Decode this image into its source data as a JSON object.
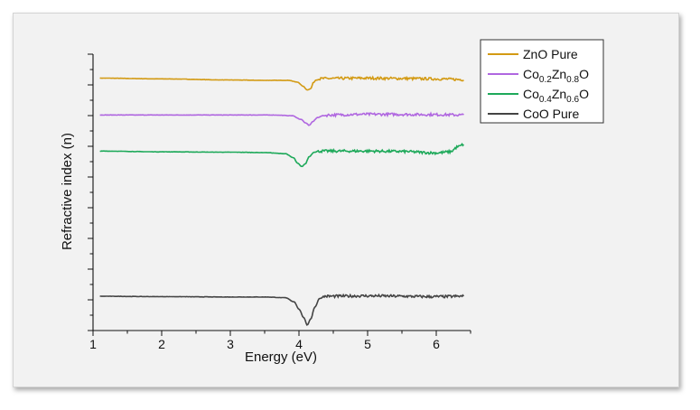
{
  "chart_data": {
    "type": "line",
    "xlabel": "Energy (eV)",
    "ylabel": "Refractive index (n)",
    "xlim": [
      1,
      6.5
    ],
    "x_ticks": [
      1,
      2,
      3,
      4,
      5,
      6
    ],
    "y_tick_labels_shown": false,
    "grid": false,
    "legend_position": "top-right",
    "series": [
      {
        "name": "ZnO Pure",
        "color": "#d39a13",
        "offset": 2.35,
        "points": [
          [
            1.1,
            0.0
          ],
          [
            2.0,
            -0.02
          ],
          [
            3.0,
            -0.05
          ],
          [
            3.5,
            -0.06
          ],
          [
            3.85,
            -0.06
          ],
          [
            3.98,
            -0.11
          ],
          [
            4.06,
            -0.22
          ],
          [
            4.12,
            -0.32
          ],
          [
            4.17,
            -0.29
          ],
          [
            4.21,
            -0.12
          ],
          [
            4.25,
            -0.05
          ],
          [
            4.35,
            -0.01
          ],
          [
            5.0,
            0.0
          ],
          [
            5.5,
            -0.01
          ],
          [
            6.0,
            -0.02
          ],
          [
            6.4,
            -0.04
          ]
        ],
        "noise_from": 4.3
      },
      {
        "name": "Co0.2Zn0.8O",
        "color": "#b067e0",
        "offset": 1.35,
        "points": [
          [
            1.1,
            0.0
          ],
          [
            2.5,
            0.0
          ],
          [
            3.6,
            0.0
          ],
          [
            3.9,
            -0.02
          ],
          [
            4.03,
            -0.12
          ],
          [
            4.1,
            -0.22
          ],
          [
            4.15,
            -0.28
          ],
          [
            4.2,
            -0.18
          ],
          [
            4.27,
            -0.07
          ],
          [
            4.35,
            -0.02
          ],
          [
            4.45,
            0.0
          ],
          [
            5.0,
            0.02
          ],
          [
            6.0,
            0.01
          ],
          [
            6.4,
            0.0
          ]
        ],
        "noise_from": 4.4
      },
      {
        "name": "Co0.4Zn0.6O",
        "color": "#1ea95a",
        "offset": 0.37,
        "points": [
          [
            1.1,
            0.0
          ],
          [
            2.0,
            -0.02
          ],
          [
            3.0,
            -0.03
          ],
          [
            3.5,
            -0.04
          ],
          [
            3.8,
            -0.07
          ],
          [
            3.92,
            -0.18
          ],
          [
            3.98,
            -0.33
          ],
          [
            4.04,
            -0.42
          ],
          [
            4.09,
            -0.35
          ],
          [
            4.15,
            -0.15
          ],
          [
            4.22,
            -0.03
          ],
          [
            4.32,
            0.0
          ],
          [
            5.0,
            0.0
          ],
          [
            5.5,
            -0.01
          ],
          [
            6.0,
            -0.05
          ],
          [
            6.2,
            -0.02
          ],
          [
            6.32,
            0.12
          ],
          [
            6.4,
            0.18
          ]
        ],
        "noise_from": 4.25
      },
      {
        "name": "CoO Pure",
        "color": "#444444",
        "offset": -3.57,
        "points": [
          [
            1.1,
            0.0
          ],
          [
            2.0,
            -0.01
          ],
          [
            3.0,
            -0.02
          ],
          [
            3.5,
            -0.02
          ],
          [
            3.8,
            -0.04
          ],
          [
            3.93,
            -0.15
          ],
          [
            4.0,
            -0.35
          ],
          [
            4.07,
            -0.58
          ],
          [
            4.12,
            -0.78
          ],
          [
            4.17,
            -0.62
          ],
          [
            4.23,
            -0.3
          ],
          [
            4.3,
            -0.06
          ],
          [
            4.38,
            0.0
          ],
          [
            5.0,
            0.01
          ],
          [
            6.0,
            -0.01
          ],
          [
            6.4,
            0.0
          ]
        ],
        "noise_from": 4.35
      }
    ]
  },
  "legend": {
    "items": [
      {
        "base": "ZnO Pure",
        "sub1": "",
        "mid": "",
        "sub2": "",
        "tail": "",
        "color": "#d39a13"
      },
      {
        "base": "Co",
        "sub1": "0.2",
        "mid": "Zn",
        "sub2": "0.8",
        "tail": "O",
        "color": "#b067e0"
      },
      {
        "base": "Co",
        "sub1": "0.4",
        "mid": "Zn",
        "sub2": "0.6",
        "tail": "O",
        "color": "#1ea95a"
      },
      {
        "base": "CoO Pure",
        "sub1": "",
        "mid": "",
        "sub2": "",
        "tail": "",
        "color": "#444444"
      }
    ]
  }
}
